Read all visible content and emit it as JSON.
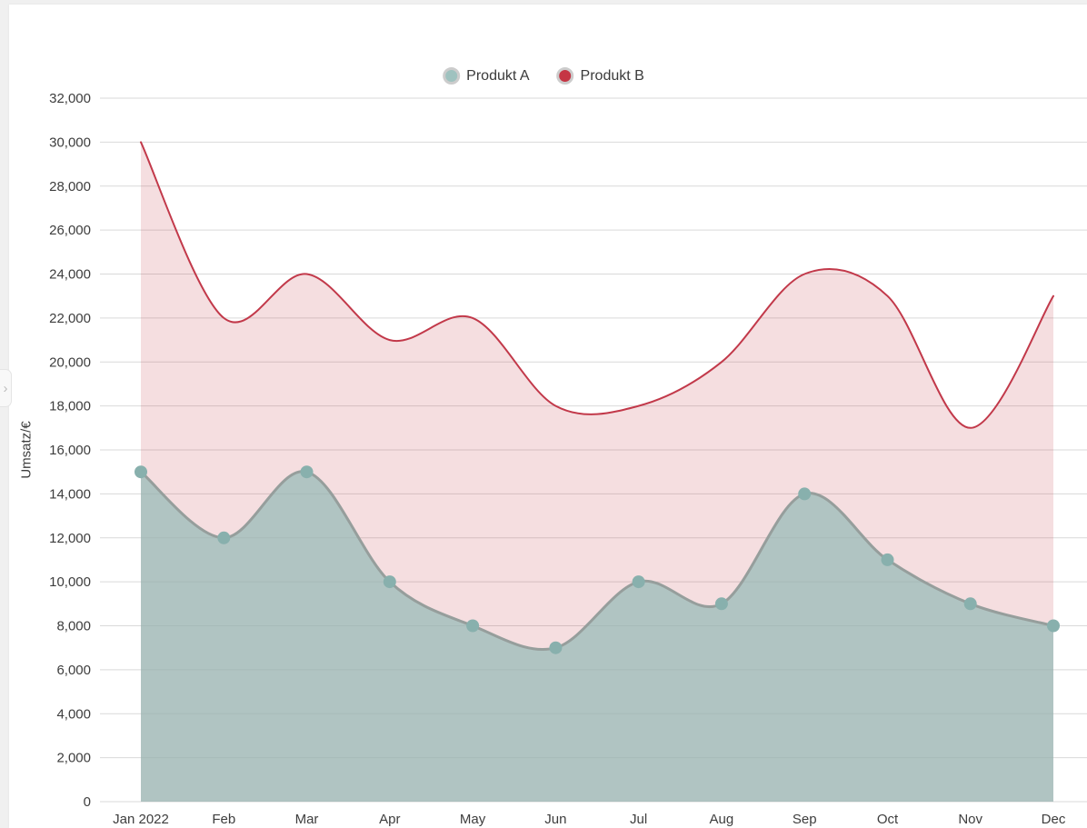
{
  "page": {
    "background_color": "#f0f0f0",
    "card_color": "#ffffff"
  },
  "panel_toggle": {
    "chevron": "›"
  },
  "chart_data": {
    "type": "area",
    "title": "",
    "xlabel": "",
    "ylabel": "Umsatz/€",
    "categories": [
      "Jan 2022",
      "Feb",
      "Mar",
      "Apr",
      "May",
      "Jun",
      "Jul",
      "Aug",
      "Sep",
      "Oct",
      "Nov",
      "Dec"
    ],
    "series": [
      {
        "name": "Produkt A",
        "values": [
          15000,
          12000,
          15000,
          10000,
          8000,
          7000,
          10000,
          9000,
          14000,
          11000,
          9000,
          8000
        ],
        "legend_color": "#9fc2bf",
        "line_color": "#969e9c",
        "line_width": 3,
        "fill_color": "rgba(150,186,182,0.72)",
        "point_color": "#88b0ad",
        "point_radius": 7,
        "points_visible": true
      },
      {
        "name": "Produkt B",
        "values": [
          30000,
          22000,
          24000,
          21000,
          22000,
          18000,
          18000,
          20000,
          24000,
          23000,
          17000,
          23000
        ],
        "legend_color": "#c53544",
        "line_color": "#c2394a",
        "line_width": 2,
        "fill_color": "rgba(194,57,74,0.17)",
        "point_color": "#c2394a",
        "point_radius": 0,
        "points_visible": false
      }
    ],
    "ylim": [
      0,
      32000
    ],
    "ytick_step": 2000,
    "grid": true,
    "grid_color": "#d9d9d9",
    "tick_label_color": "#3d3d3d",
    "tick_font_size": 15,
    "legend_position": "top",
    "curve": "smooth"
  }
}
